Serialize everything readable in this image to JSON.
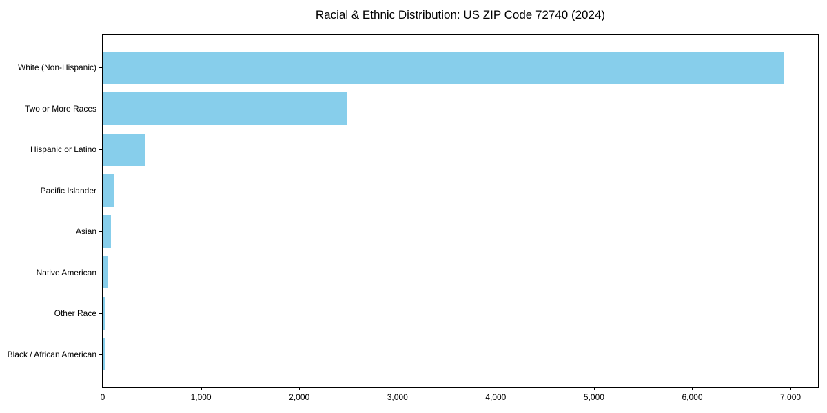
{
  "figure": {
    "background_color": "#FFFFFF",
    "axis_color": "#000000",
    "text_color": "#000000"
  },
  "chart_data": {
    "type": "bar",
    "orientation": "horizontal",
    "title": "Racial & Ethnic Distribution: US ZIP Code 72740 (2024)",
    "categories": [
      "White (Non-Hispanic)",
      "Two or More Races",
      "Hispanic or Latino",
      "Pacific Islander",
      "Asian",
      "Native American",
      "Other Race",
      "Black / African American"
    ],
    "values": [
      6930,
      2480,
      435,
      120,
      85,
      48,
      21,
      28
    ],
    "bar_color": "#87CEEB",
    "xlabel": "",
    "ylabel": "",
    "xlim": [
      0,
      7280
    ],
    "x_ticks": [
      0,
      1000,
      2000,
      3000,
      4000,
      5000,
      6000,
      7000
    ],
    "x_tick_labels": [
      "0",
      "1,000",
      "2,000",
      "3,000",
      "4,000",
      "5,000",
      "6,000",
      "7,000"
    ],
    "grid": false,
    "legend": null
  }
}
